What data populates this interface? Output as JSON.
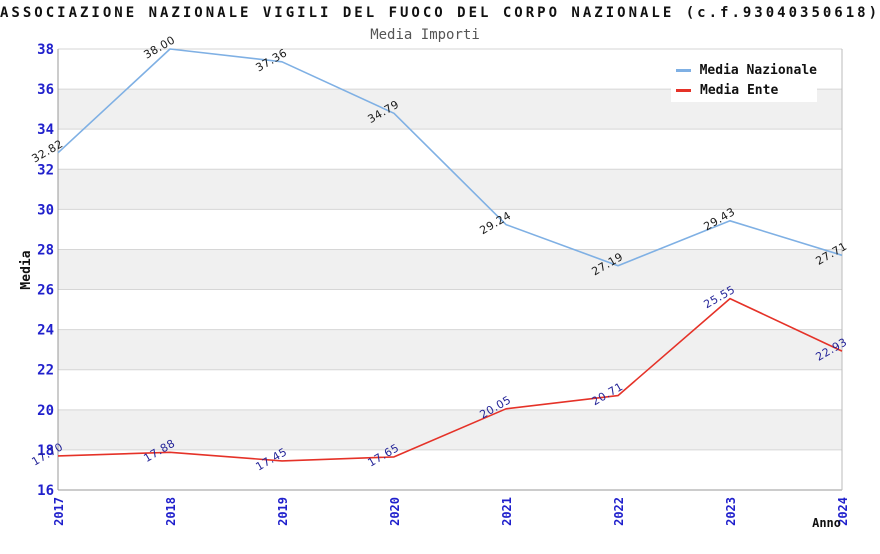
{
  "header": {
    "title": "ASSOCIAZIONE NAZIONALE VIGILI DEL FUOCO DEL CORPO NAZIONALE (c.f.93040350618)",
    "subtitle": "Media Importi"
  },
  "legend": {
    "position": "top-right",
    "items": [
      {
        "label": "Media Nazionale",
        "color": "#7FB0E4"
      },
      {
        "label": "Media Ente",
        "color": "#E53228"
      }
    ]
  },
  "colors": {
    "tick_blue": "#2020CC",
    "band_gray": "#F0F0F0",
    "gridline": "#D6D6D6",
    "axis_frame": "#999999",
    "right_frame": "#BBBBBB",
    "title_black": "#111111",
    "subtitle_gray": "#555555",
    "blue_series_label": "#1A1A1A",
    "red_series_label": "#252598"
  },
  "chart_data": {
    "type": "line",
    "title": "ASSOCIAZIONE NAZIONALE VIGILI DEL FUOCO DEL CORPO NAZIONALE (c.f.93040350618)",
    "subtitle": "Media Importi",
    "xlabel": "Anno",
    "ylabel": "Media",
    "categories": [
      "2017",
      "2018",
      "2019",
      "2020",
      "2021",
      "2022",
      "2023",
      "2024"
    ],
    "ylim": [
      16,
      38
    ],
    "ytick_step": 2,
    "grid": "alternating-horizontal-bands",
    "legend_position": "top-right",
    "series": [
      {
        "name": "Media Nazionale",
        "color": "#7FB0E4",
        "label_color": "#1A1A1A",
        "values": [
          32.82,
          38.0,
          37.36,
          34.79,
          29.24,
          27.19,
          29.43,
          27.71
        ],
        "labels": [
          "32.82",
          "38.00",
          "37.36",
          "34.79",
          "29.24",
          "27.19",
          "29.43",
          "27.71"
        ]
      },
      {
        "name": "Media Ente",
        "color": "#E53228",
        "label_color": "#252598",
        "values": [
          17.7,
          17.88,
          17.45,
          17.65,
          20.05,
          20.71,
          25.55,
          22.93
        ],
        "labels": [
          "17.70",
          "17.88",
          "17.45",
          "17.65",
          "20.05",
          "20.71",
          "25.55",
          "22.93"
        ]
      }
    ]
  }
}
